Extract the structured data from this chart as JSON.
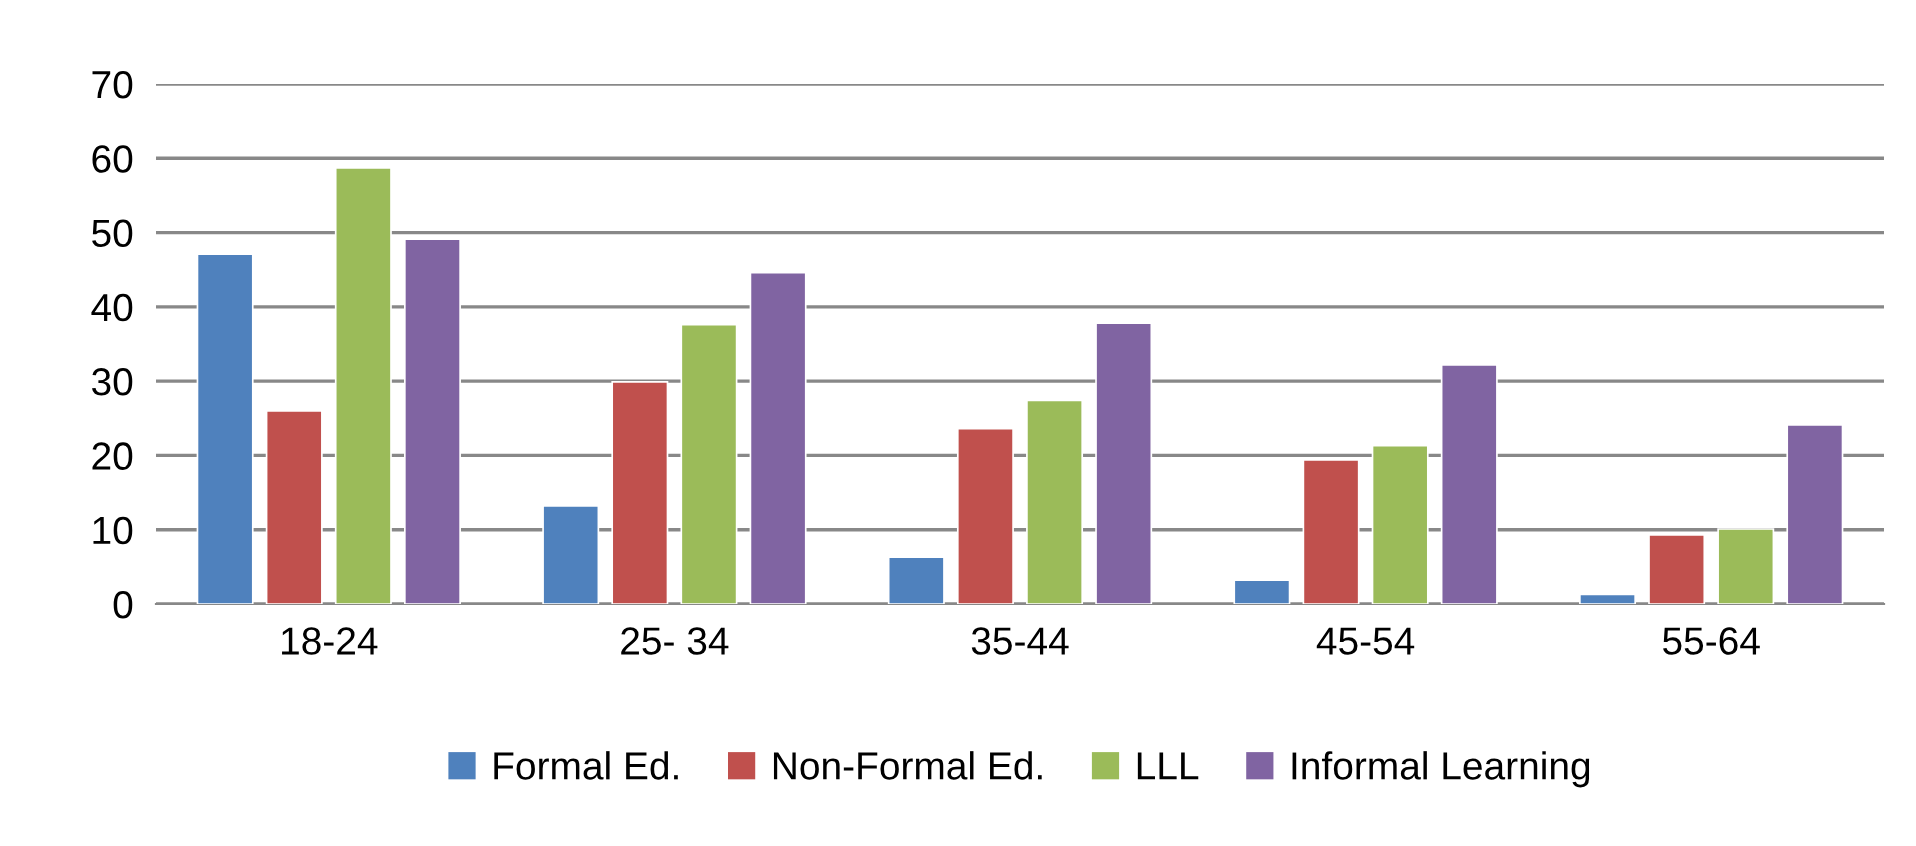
{
  "chart_data": {
    "type": "bar",
    "categories": [
      "18-24",
      "25- 34",
      "35-44",
      "45-54",
      "55-64"
    ],
    "series": [
      {
        "name": "Formal Ed.",
        "color": "#4f81bd",
        "values": [
          47.1,
          13.2,
          6.3,
          3.2,
          1.3
        ]
      },
      {
        "name": "Non-Formal Ed.",
        "color": "#c0504d",
        "values": [
          26.0,
          29.9,
          23.6,
          19.4,
          9.3
        ]
      },
      {
        "name": "LLL",
        "color": "#9bbb59",
        "values": [
          58.7,
          37.6,
          27.4,
          21.3,
          10.1
        ]
      },
      {
        "name": "Informal Learning",
        "color": "#8064a2",
        "values": [
          49.1,
          44.6,
          37.8,
          32.2,
          24.1
        ]
      }
    ],
    "ylim": [
      0,
      70
    ],
    "yticks": [
      0,
      10,
      20,
      30,
      40,
      50,
      60,
      70
    ],
    "grid": "y",
    "legend": "bottom"
  }
}
